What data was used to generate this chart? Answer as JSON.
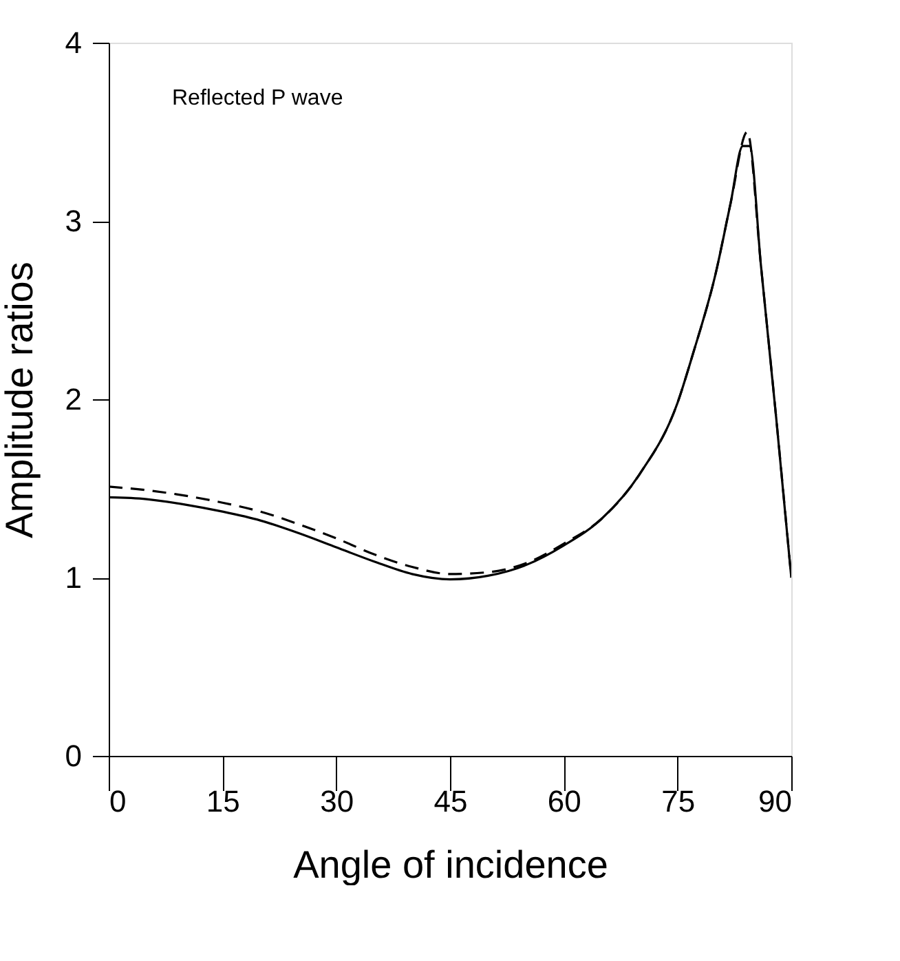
{
  "chart_data": {
    "type": "line",
    "xlabel": "Angle of incidence",
    "ylabel": "Amplitude ratios",
    "annotations": [
      "Reflected P wave"
    ],
    "xlim": [
      0,
      90
    ],
    "xticks": [
      0,
      15,
      30,
      45,
      60,
      75,
      90
    ],
    "ylim": [
      0,
      4
    ],
    "yticks": [
      0,
      1,
      2,
      3,
      4
    ],
    "grid": false,
    "marker": "none",
    "series": [
      {
        "color": "#000000",
        "line_style": "solid",
        "x": [
          0,
          5,
          10,
          15,
          20,
          25,
          30,
          35,
          40,
          45,
          50,
          55,
          60,
          65,
          70,
          75,
          77,
          80,
          82,
          83.6,
          84.5,
          86,
          88,
          90
        ],
        "values": [
          1.45,
          1.44,
          1.41,
          1.37,
          1.32,
          1.25,
          1.17,
          1.09,
          1.02,
          0.99,
          1.01,
          1.07,
          1.18,
          1.33,
          1.58,
          1.98,
          2.25,
          2.7,
          3.1,
          3.42,
          3.42,
          2.75,
          1.9,
          1.0
        ]
      },
      {
        "color": "#000000",
        "line_style": "dashed",
        "x": [
          0,
          5,
          10,
          15,
          20,
          25,
          30,
          35,
          40,
          45,
          50,
          55,
          60,
          65,
          70,
          75,
          77,
          80,
          82,
          84.2,
          86,
          88,
          90
        ],
        "values": [
          1.51,
          1.49,
          1.46,
          1.42,
          1.37,
          1.3,
          1.22,
          1.13,
          1.06,
          1.02,
          1.03,
          1.08,
          1.19,
          1.33,
          1.58,
          1.98,
          2.25,
          2.7,
          3.1,
          3.5,
          2.75,
          1.9,
          1.0
        ]
      }
    ]
  }
}
